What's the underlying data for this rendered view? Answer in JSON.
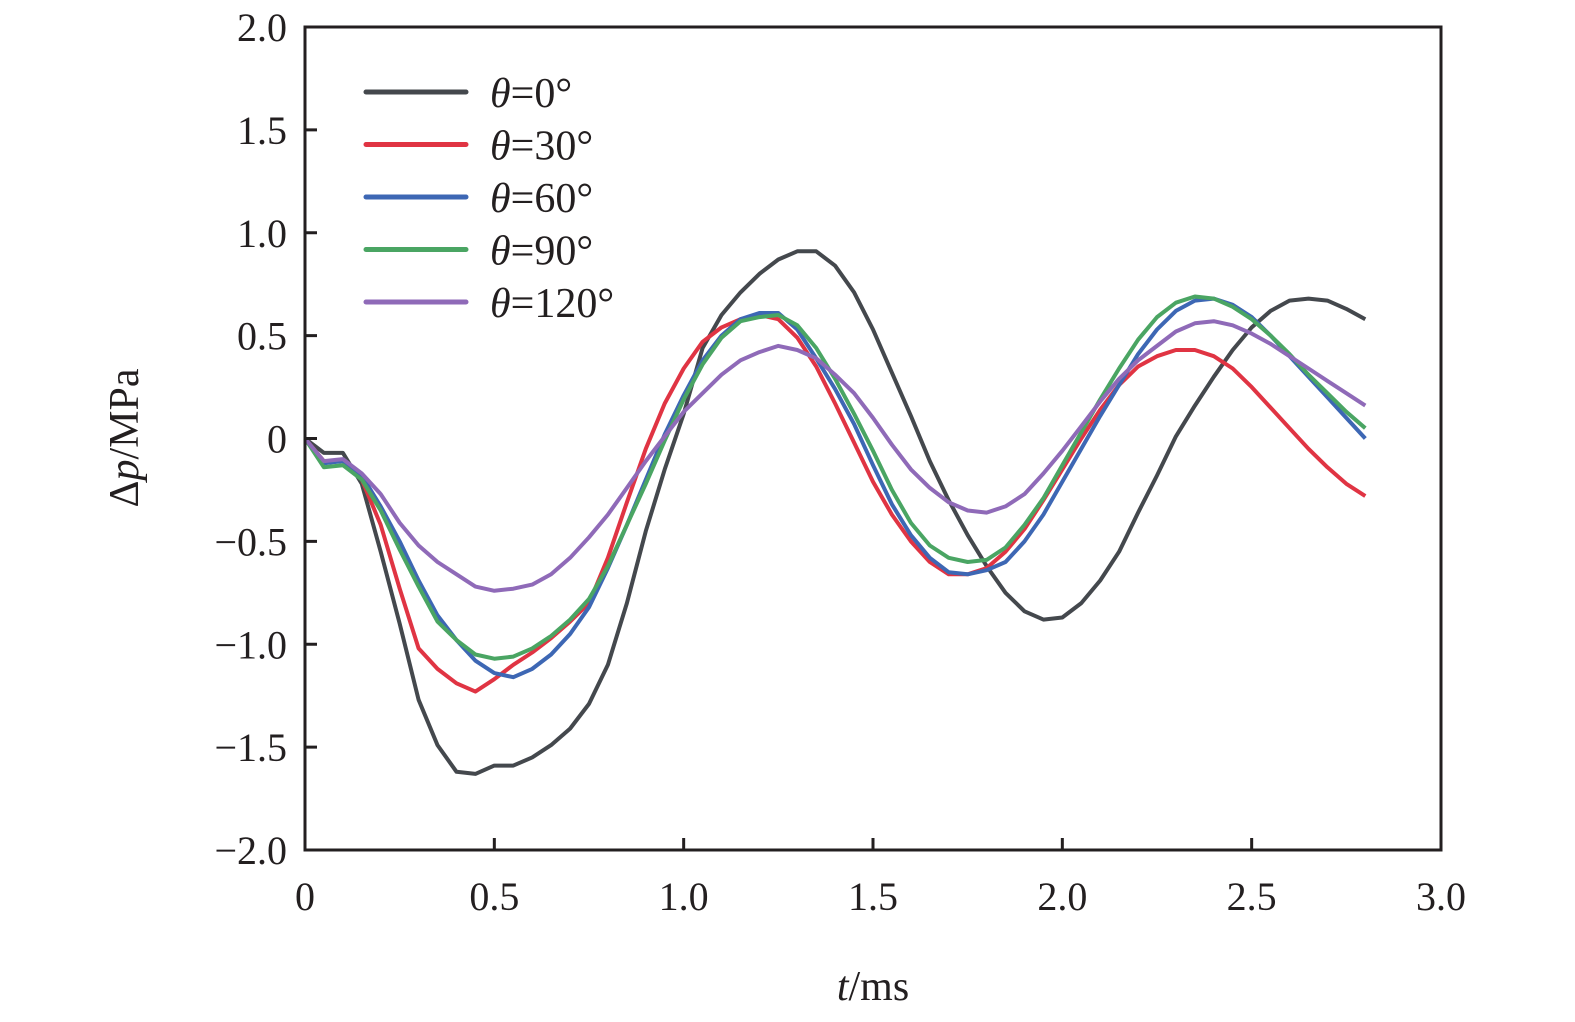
{
  "chart_data": {
    "type": "line",
    "title": "",
    "xlabel": {
      "italic": "t",
      "rest": "/ms"
    },
    "ylabel": {
      "prefix": "Δ",
      "italic": "p",
      "rest": "/MPa"
    },
    "xlim": [
      0,
      3.0
    ],
    "ylim": [
      -2.0,
      2.0
    ],
    "xticks": [
      "0",
      "0.5",
      "1.0",
      "1.5",
      "2.0",
      "2.5",
      "3.0"
    ],
    "yticks": [
      "−2.0",
      "−1.5",
      "−1.0",
      "−0.5",
      "0",
      "0.5",
      "1.0",
      "1.5",
      "2.0"
    ],
    "grid": false,
    "legend_position": "top-left",
    "x": [
      0,
      0.05,
      0.1,
      0.15,
      0.2,
      0.25,
      0.3,
      0.35,
      0.4,
      0.45,
      0.5,
      0.55,
      0.6,
      0.65,
      0.7,
      0.75,
      0.8,
      0.85,
      0.9,
      0.95,
      1.0,
      1.05,
      1.1,
      1.15,
      1.2,
      1.25,
      1.3,
      1.35,
      1.4,
      1.45,
      1.5,
      1.55,
      1.6,
      1.65,
      1.7,
      1.75,
      1.8,
      1.85,
      1.9,
      1.95,
      2.0,
      2.05,
      2.1,
      2.15,
      2.2,
      2.25,
      2.3,
      2.35,
      2.4,
      2.45,
      2.5,
      2.55,
      2.6,
      2.65,
      2.7,
      2.75,
      2.8
    ],
    "series": [
      {
        "name": "θ=0°",
        "symbol": "θ",
        "suffix": "=0°",
        "color": "#44484d",
        "values": [
          0,
          -0.07,
          -0.07,
          -0.22,
          -0.55,
          -0.9,
          -1.27,
          -1.49,
          -1.62,
          -1.63,
          -1.59,
          -1.59,
          -1.55,
          -1.49,
          -1.41,
          -1.29,
          -1.1,
          -0.8,
          -0.45,
          -0.15,
          0.12,
          0.44,
          0.6,
          0.71,
          0.8,
          0.87,
          0.91,
          0.91,
          0.84,
          0.71,
          0.53,
          0.32,
          0.11,
          -0.11,
          -0.3,
          -0.47,
          -0.62,
          -0.75,
          -0.84,
          -0.88,
          -0.87,
          -0.8,
          -0.69,
          -0.55,
          -0.36,
          -0.18,
          0.01,
          0.16,
          0.3,
          0.43,
          0.54,
          0.62,
          0.67,
          0.68,
          0.67,
          0.63,
          0.58
        ]
      },
      {
        "name": "θ=30°",
        "symbol": "θ",
        "suffix": "=30°",
        "color": "#e03443",
        "values": [
          0,
          -0.11,
          -0.11,
          -0.2,
          -0.42,
          -0.73,
          -1.02,
          -1.12,
          -1.19,
          -1.23,
          -1.17,
          -1.1,
          -1.04,
          -0.97,
          -0.89,
          -0.8,
          -0.58,
          -0.31,
          -0.05,
          0.17,
          0.34,
          0.47,
          0.54,
          0.58,
          0.6,
          0.58,
          0.49,
          0.35,
          0.17,
          -0.02,
          -0.21,
          -0.37,
          -0.5,
          -0.6,
          -0.66,
          -0.66,
          -0.63,
          -0.55,
          -0.44,
          -0.3,
          -0.15,
          0.0,
          0.14,
          0.26,
          0.35,
          0.4,
          0.43,
          0.43,
          0.4,
          0.34,
          0.25,
          0.15,
          0.05,
          -0.05,
          -0.14,
          -0.22,
          -0.28
        ]
      },
      {
        "name": "θ=60°",
        "symbol": "θ",
        "suffix": "=60°",
        "color": "#3d67b4",
        "values": [
          0,
          -0.12,
          -0.11,
          -0.18,
          -0.33,
          -0.5,
          -0.69,
          -0.86,
          -0.98,
          -1.08,
          -1.14,
          -1.16,
          -1.12,
          -1.05,
          -0.95,
          -0.82,
          -0.63,
          -0.42,
          -0.2,
          0.02,
          0.21,
          0.38,
          0.5,
          0.58,
          0.61,
          0.61,
          0.53,
          0.39,
          0.24,
          0.07,
          -0.13,
          -0.32,
          -0.47,
          -0.58,
          -0.65,
          -0.66,
          -0.64,
          -0.6,
          -0.5,
          -0.37,
          -0.21,
          -0.05,
          0.11,
          0.26,
          0.41,
          0.53,
          0.62,
          0.67,
          0.68,
          0.65,
          0.59,
          0.5,
          0.4,
          0.3,
          0.2,
          0.1,
          0.0
        ]
      },
      {
        "name": "θ=90°",
        "symbol": "θ",
        "suffix": "=90°",
        "color": "#4aa563",
        "values": [
          0,
          -0.14,
          -0.13,
          -0.2,
          -0.35,
          -0.54,
          -0.72,
          -0.89,
          -0.98,
          -1.05,
          -1.07,
          -1.06,
          -1.02,
          -0.96,
          -0.88,
          -0.78,
          -0.62,
          -0.42,
          -0.22,
          -0.01,
          0.19,
          0.36,
          0.49,
          0.57,
          0.59,
          0.6,
          0.55,
          0.44,
          0.29,
          0.12,
          -0.06,
          -0.25,
          -0.41,
          -0.52,
          -0.58,
          -0.6,
          -0.59,
          -0.53,
          -0.42,
          -0.29,
          -0.13,
          0.03,
          0.19,
          0.34,
          0.48,
          0.59,
          0.66,
          0.69,
          0.68,
          0.64,
          0.58,
          0.5,
          0.41,
          0.31,
          0.22,
          0.13,
          0.05
        ]
      },
      {
        "name": "θ=120°",
        "symbol": "θ",
        "suffix": "=120°",
        "color": "#8f6ab8",
        "values": [
          0,
          -0.11,
          -0.1,
          -0.17,
          -0.27,
          -0.41,
          -0.52,
          -0.6,
          -0.66,
          -0.72,
          -0.74,
          -0.73,
          -0.71,
          -0.66,
          -0.58,
          -0.48,
          -0.37,
          -0.24,
          -0.11,
          0.01,
          0.13,
          0.22,
          0.31,
          0.38,
          0.42,
          0.45,
          0.43,
          0.39,
          0.31,
          0.22,
          0.1,
          -0.03,
          -0.15,
          -0.24,
          -0.31,
          -0.35,
          -0.36,
          -0.33,
          -0.27,
          -0.17,
          -0.06,
          0.06,
          0.18,
          0.29,
          0.38,
          0.45,
          0.52,
          0.56,
          0.57,
          0.55,
          0.51,
          0.46,
          0.4,
          0.34,
          0.28,
          0.22,
          0.16
        ]
      }
    ]
  }
}
